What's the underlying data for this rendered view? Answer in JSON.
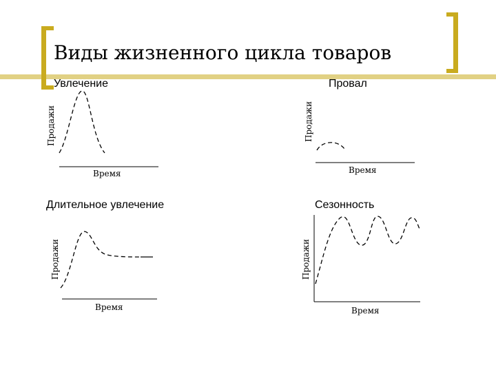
{
  "slide": {
    "title": "Виды жизненного цикла товаров"
  },
  "panels": {
    "fad": {
      "label": "Увлечение",
      "y_axis": "Продажи",
      "x_axis": "Время"
    },
    "flop": {
      "label": "Провал",
      "y_axis": "Продажи",
      "x_axis": "Время"
    },
    "long_fad": {
      "label": "Длительное увлечение",
      "y_axis": "Продажи",
      "x_axis": "Время"
    },
    "seasonal": {
      "label": "Сезонность",
      "y_axis": "Продажи",
      "x_axis": "Время"
    }
  },
  "colors": {
    "accent": "#c9ab1f"
  }
}
